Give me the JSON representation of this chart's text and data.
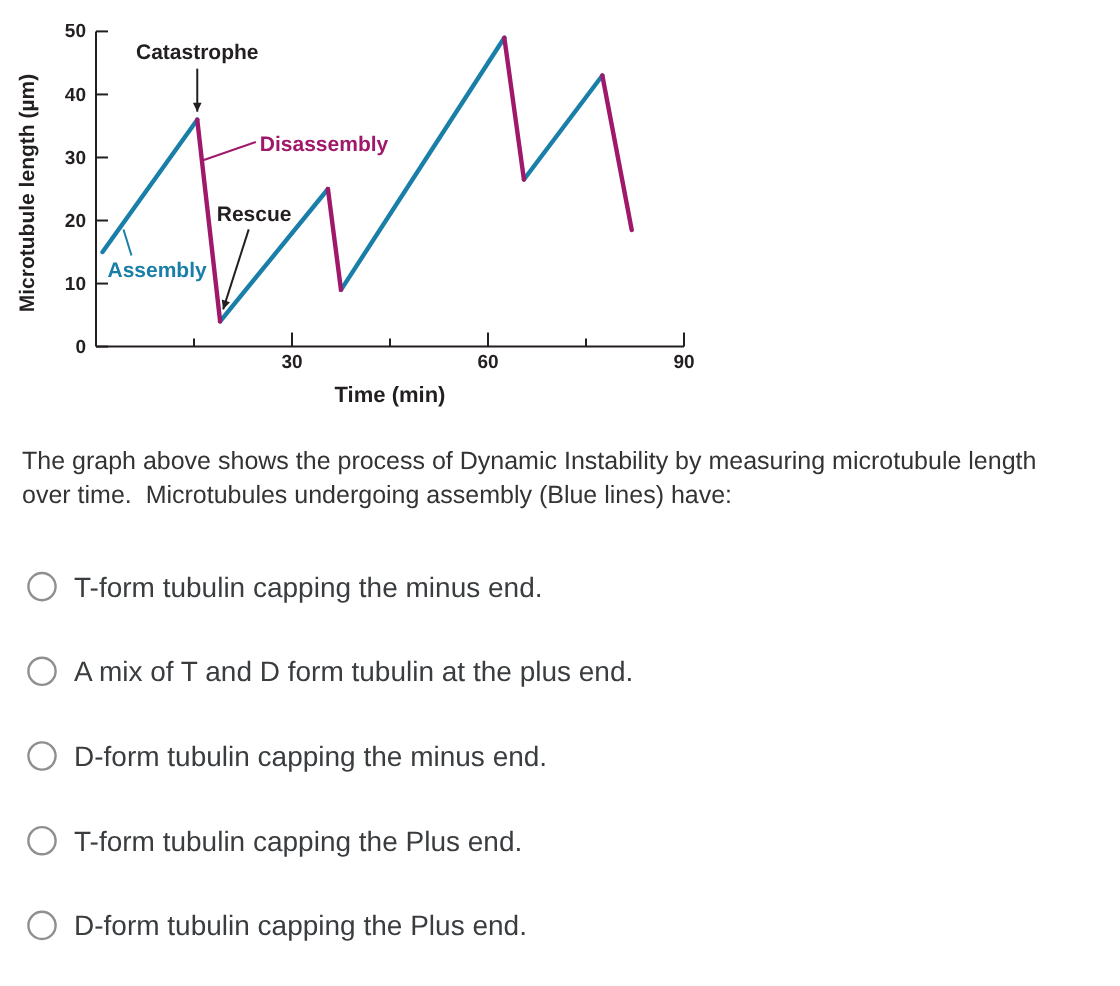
{
  "chart_data": {
    "type": "line",
    "xlabel": "Time (min)",
    "ylabel": "Microtubule length (µm)",
    "xlim": [
      0,
      90
    ],
    "ylim": [
      0,
      50
    ],
    "xticks": [
      {
        "value": 15,
        "label": null
      },
      30,
      {
        "value": 45,
        "label": null
      },
      60,
      {
        "value": 75,
        "label": null
      },
      90
    ],
    "yticks": [
      0,
      10,
      20,
      30,
      40,
      50
    ],
    "series": [
      {
        "name": "Assembly",
        "color": "#1a7fa8",
        "x": [
          1,
          15.5,
          17,
          19,
          35.5,
          36.5,
          37.5,
          62.5,
          64,
          65.5,
          77.5
        ],
        "values": [
          15,
          36,
          null,
          4,
          25,
          null,
          9,
          49,
          null,
          26.5,
          43
        ]
      },
      {
        "name": "Disassembly",
        "color": "#a0186a",
        "x": [
          15.5,
          19,
          27,
          35.5,
          37.5,
          50,
          62.5,
          65.5,
          71,
          77.5,
          82
        ],
        "values": [
          36,
          4,
          null,
          25,
          9,
          null,
          49,
          26.5,
          null,
          43,
          18.5
        ]
      }
    ],
    "annotations": [
      {
        "text": "Catastrophe",
        "x": 15.5,
        "y": 36
      },
      {
        "text": "Rescue",
        "x": 19,
        "y": 4
      },
      "The graph above shows the process of Dynamic Instability by measuring microtubule length over time.  Microtubules undergoing assembly (Blue lines) have:",
      "T-form tubulin capping the minus end.",
      "A mix of T and D form tubulin at the plus end.",
      "D-form tubulin capping the minus end.",
      "T-form tubulin capping the Plus end.",
      "D-form tubulin capping the Plus end."
    ]
  }
}
